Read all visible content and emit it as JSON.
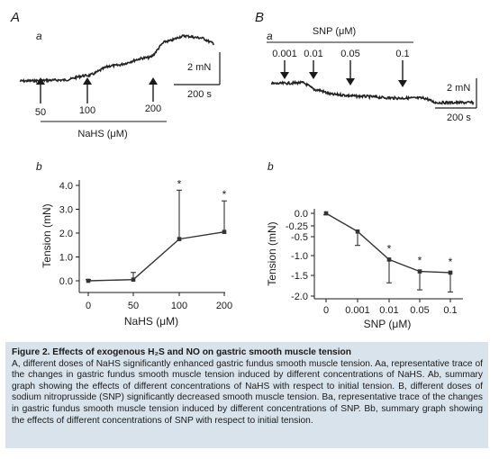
{
  "panelA": {
    "letter": "A",
    "trace_letter": "a",
    "scale_y": "2 mN",
    "scale_x": "200 s",
    "dose_labels": [
      "50",
      "100",
      "200"
    ],
    "bar_label": "NaHS (μM)"
  },
  "panelB": {
    "letter": "B",
    "trace_letter": "a",
    "bar_label": "SNP (μM)",
    "dose_labels": [
      "0.001",
      "0.01",
      "0.05",
      "0.1"
    ],
    "scale_y": "2 mN",
    "scale_x": "200 s"
  },
  "chart_data": [
    {
      "type": "line",
      "panel_letter": "b",
      "categories": [
        "0",
        "50",
        "100",
        "200"
      ],
      "series": [
        {
          "values": [
            0.0,
            0.05,
            1.75,
            2.05
          ],
          "error": [
            0.05,
            0.3,
            2.05,
            1.3
          ]
        }
      ],
      "significance": [
        "",
        "",
        "*",
        "*"
      ],
      "yticks": [
        "4.0",
        "3.0",
        "2.0",
        "1.0",
        "0.0"
      ],
      "ylim": [
        -0.3,
        4.1
      ],
      "xlabel": "NaHS (μM)",
      "ylabel": "Tension (mN)"
    },
    {
      "type": "line",
      "panel_letter": "b",
      "categories": [
        "0",
        "0.001",
        "0.01",
        "0.05",
        "0.1"
      ],
      "series": [
        {
          "values": [
            0.0,
            -0.38,
            -1.1,
            -1.4,
            -1.43
          ],
          "error": [
            0.03,
            0.35,
            0.58,
            0.45,
            0.47
          ]
        }
      ],
      "significance": [
        "",
        "",
        "*",
        "*",
        "*"
      ],
      "yticks": [
        "0.0",
        "-0.25",
        "-0.5",
        "-1.0",
        "-1.5",
        "-2.0"
      ],
      "ytick_values": [
        0.0,
        -0.25,
        -0.5,
        -1.0,
        -1.5,
        -2.0
      ],
      "ylim": [
        -2.0,
        0.1
      ],
      "xlabel": "SNP (μM)",
      "ylabel": "Tension (mN)"
    }
  ],
  "caption": {
    "title": "Figure 2.  Effects of exogenous H₂S and NO on gastric smooth muscle tension",
    "text": "A, different doses of NaHS significantly enhanced gastric fundus smooth muscle tension. Aa, representative trace of the changes in gastric fundus smooth muscle tension induced by different concentrations of NaHS. Ab, summary graph showing the effects of different concentrations of NaHS with respect to initial tension. B, different doses of sodium nitroprusside (SNP) significantly decreased smooth muscle tension. Ba, representative trace of the changes in gastric fundus smooth muscle tension induced by different concentrations of SNP. Bb, summary graph showing the effects of different concentrations of SNP with respect to initial tension."
  }
}
